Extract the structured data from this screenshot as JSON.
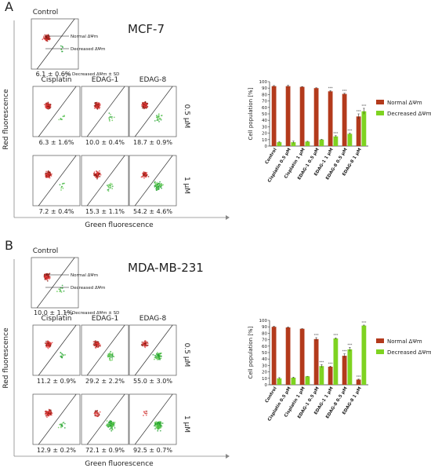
{
  "panels": [
    {
      "letter": "A",
      "cell_line": "MCF-7",
      "control_label": "Control",
      "control_value": "6.1 ± 0.6%",
      "annotations": {
        "normal": "Normal ΔΨm",
        "decreased": "Decreased ΔΨm",
        "mean_sd": "Decreased ΔΨm ± SD"
      },
      "columns": [
        "Cisplatin",
        "EDAG-1",
        "EDAG-8"
      ],
      "rows": [
        "0.5 µM",
        "1 µM"
      ],
      "values": [
        [
          "6.3 ± 1.6%",
          "10.0 ± 0.4%",
          "18.7 ± 0.9%"
        ],
        [
          "7.2 ± 0.4%",
          "15.3 ± 1.1%",
          "54.2 ± 4.6%"
        ]
      ],
      "xaxis": "Green fluorescence",
      "yaxis": "Red fluorescence"
    },
    {
      "letter": "B",
      "cell_line": "MDA-MB-231",
      "control_label": "Control",
      "control_value": "10.0 ± 1.1%",
      "annotations": {
        "normal": "Normal ΔΨm",
        "decreased": "Decreased ΔΨm",
        "mean_sd": "Decreased ΔΨm ± SD"
      },
      "columns": [
        "Cisplatin",
        "EDAG-1",
        "EDAG-8"
      ],
      "rows": [
        "0.5 µM",
        "1 µM"
      ],
      "values": [
        [
          "11.2 ± 0.9%",
          "29.2 ± 2.2%",
          "55.0 ± 3.0%"
        ],
        [
          "12.9 ± 0.2%",
          "72.1 ± 0.9%",
          "92.5 ± 0.7%"
        ]
      ],
      "xaxis": "Green fluorescence",
      "yaxis": "Red fluorescence"
    }
  ],
  "colors": {
    "normal": "#b33a1c",
    "decreased": "#7ed321",
    "text": "#222222"
  },
  "chart_data": [
    {
      "type": "bar",
      "ylabel": "Cell population [%]",
      "ylim": [
        0,
        100
      ],
      "yticks": [
        0,
        10,
        20,
        30,
        40,
        50,
        60,
        70,
        80,
        90,
        100
      ],
      "categories": [
        "Control",
        "Cisplatin 0.5 µM",
        "Cisplatin 1 µM",
        "EDAG-1 0.5 µM",
        "EDAG-1 1 µM",
        "EDAG-8 0.5 µM",
        "EDAG-8 1 µM"
      ],
      "legend_position": "right",
      "significance": [
        "",
        "",
        "",
        "",
        "***",
        "***",
        "***"
      ],
      "series": [
        {
          "name": "Normal ΔΨm",
          "values": [
            93,
            93,
            92,
            90,
            85,
            81,
            46
          ],
          "errors": [
            1,
            1.5,
            0.5,
            0.5,
            1,
            1,
            4
          ]
        },
        {
          "name": "Decreased ΔΨm",
          "values": [
            6,
            6,
            7,
            10,
            15,
            19,
            54
          ],
          "errors": [
            0.6,
            1.6,
            0.4,
            0.4,
            1.1,
            0.9,
            4.6
          ]
        }
      ]
    },
    {
      "type": "bar",
      "ylabel": "Cell population [%]",
      "ylim": [
        0,
        100
      ],
      "yticks": [
        0,
        10,
        20,
        30,
        40,
        50,
        60,
        70,
        80,
        90,
        100
      ],
      "categories": [
        "Control",
        "Cisplatin 0.5 µM",
        "Cisplatin 1 µM",
        "EDAG-1 0.5 µM",
        "EDAG-1 1 µM",
        "EDAG-8 0.5 µM",
        "EDAG-8 1 µM"
      ],
      "legend_position": "right",
      "significance": [
        "",
        "",
        "",
        "***",
        "***",
        "***",
        "***"
      ],
      "series": [
        {
          "name": "Normal ΔΨm",
          "values": [
            90,
            89,
            87,
            71,
            28,
            45,
            8
          ],
          "errors": [
            1,
            1,
            0.2,
            2.2,
            0.9,
            3,
            0.7
          ]
        },
        {
          "name": "Decreased ΔΨm",
          "values": [
            10,
            11,
            13,
            29,
            72,
            55,
            92
          ],
          "errors": [
            1.1,
            0.9,
            0.2,
            2.2,
            0.9,
            3,
            0.7
          ]
        }
      ]
    }
  ]
}
